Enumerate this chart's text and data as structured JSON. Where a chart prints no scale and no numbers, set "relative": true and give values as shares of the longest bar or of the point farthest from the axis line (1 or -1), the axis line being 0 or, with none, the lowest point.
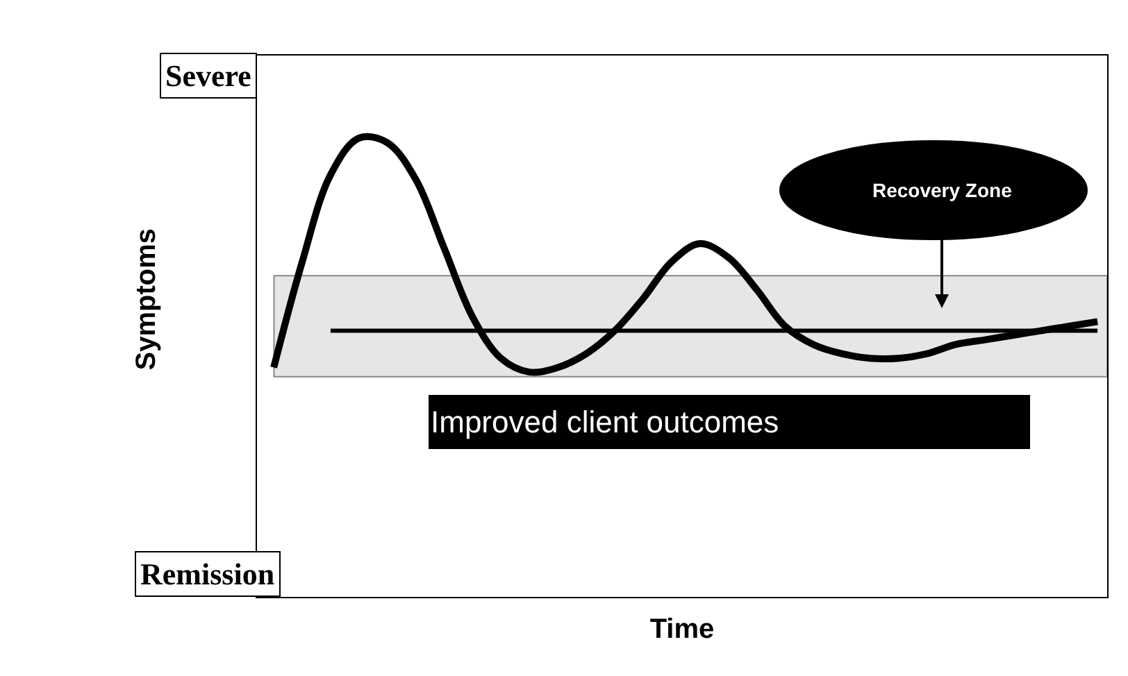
{
  "chart_data": {
    "type": "line",
    "relative": true,
    "xlabel": "Time",
    "ylabel": "Symptoms",
    "categories": [
      null,
      null,
      null,
      null,
      null,
      null,
      null,
      null,
      null,
      null,
      null,
      null,
      null,
      null,
      null,
      null,
      null,
      null,
      null,
      null,
      null,
      null,
      null,
      null,
      null,
      null,
      null,
      null,
      null,
      null
    ],
    "series": [
      {
        "color": "#000000",
        "values": [
          0.5,
          0.73,
          0.92,
          1.0,
          0.99,
          0.91,
          0.76,
          0.61,
          0.52,
          0.49,
          0.5,
          0.53,
          0.58,
          0.65,
          0.73,
          0.77,
          0.74,
          0.67,
          0.59,
          0.55,
          0.53,
          0.52,
          0.52,
          0.53,
          0.55,
          0.56,
          0.57,
          0.58,
          0.59,
          0.6
        ]
      },
      {
        "color": "#000000",
        "values": [
          null,
          null,
          0.58,
          0.58,
          0.58,
          0.58,
          0.58,
          0.58,
          0.58,
          0.58,
          0.58,
          0.58,
          0.58,
          0.58,
          0.58,
          0.58,
          0.58,
          0.58,
          0.58,
          0.58,
          0.58,
          0.58,
          0.58,
          0.58,
          0.58,
          0.58,
          0.58,
          0.58,
          0.58,
          0.58
        ]
      }
    ],
    "bands": [
      {
        "axis": "y",
        "from": 0.48,
        "to": 0.7,
        "color": "#e6e6e6"
      }
    ],
    "annotations": [
      "Severe",
      "Remission",
      "Recovery Zone",
      "Improved client outcomes"
    ],
    "grid": false,
    "marker": "none",
    "line_style": "solid"
  }
}
